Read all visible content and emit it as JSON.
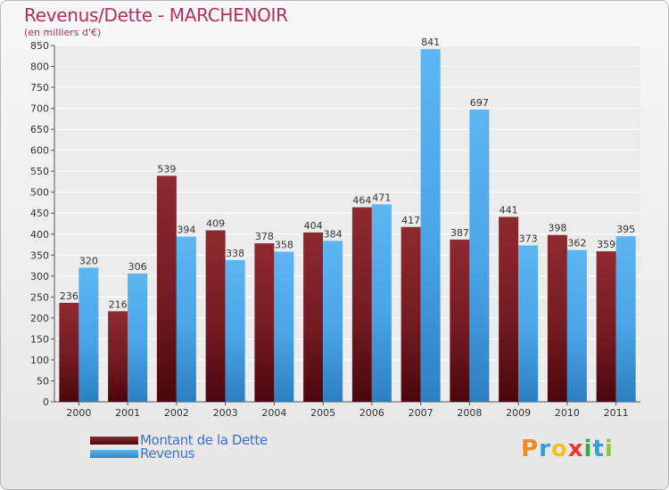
{
  "chart_data": {
    "type": "bar",
    "title": "Revenus/Dette - MARCHENOIR",
    "subtitle": "(en milliers d'€)",
    "xlabel": "",
    "ylabel": "",
    "ylim": [
      0,
      850
    ],
    "yticks": [
      "0",
      "50",
      "100",
      "150",
      "200",
      "250",
      "300",
      "350",
      "400",
      "450",
      "500",
      "550",
      "600",
      "650",
      "700",
      "750",
      "800",
      "850"
    ],
    "grid": true,
    "legend_position": "bottom-left",
    "categories": [
      "2000",
      "2001",
      "2002",
      "2003",
      "2004",
      "2005",
      "2006",
      "2007",
      "2008",
      "2009",
      "2010",
      "2011"
    ],
    "series": [
      {
        "name": "Montant de la Dette",
        "color": "#7a1e24",
        "values": [
          236,
          216,
          539,
          409,
          378,
          404,
          464,
          417,
          387,
          441,
          398,
          359
        ],
        "labels": [
          "236",
          "216",
          "539",
          "409",
          "378",
          "404",
          "464",
          "417",
          "387",
          "441",
          "398",
          "359"
        ]
      },
      {
        "name": "Revenus",
        "color": "#4da6e8",
        "values": [
          320,
          306,
          394,
          338,
          358,
          384,
          471,
          841,
          697,
          373,
          362,
          395
        ],
        "labels": [
          "320",
          "306",
          "394",
          "338",
          "358",
          "384",
          "471",
          "841",
          "697",
          "373",
          "362",
          "395"
        ]
      }
    ]
  },
  "logo": {
    "letters": [
      {
        "char": "P",
        "color": "#f08a1c"
      },
      {
        "char": "r",
        "color": "#3a9ad9"
      },
      {
        "char": "o",
        "color": "#f2c21a"
      },
      {
        "char": "x",
        "color": "#e83a2a"
      },
      {
        "char": "i",
        "color": "#3aa84a"
      },
      {
        "char": "t",
        "color": "#3a9ad9"
      },
      {
        "char": "i",
        "color": "#8cc63f"
      }
    ]
  }
}
